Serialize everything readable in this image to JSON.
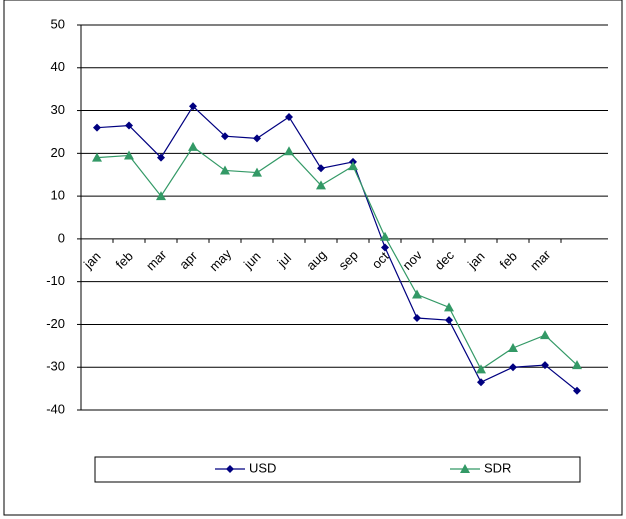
{
  "chart_data": {
    "type": "line",
    "categories": [
      "jan",
      "feb",
      "mar",
      "apr",
      "may",
      "jun",
      "jul",
      "aug",
      "sep",
      "oct",
      "nov",
      "dec",
      "jan",
      "feb",
      "mar",
      null
    ],
    "series": [
      {
        "name": "USD",
        "color": "#000080",
        "marker": "diamond",
        "values": [
          26,
          26.5,
          19,
          31,
          24,
          23.5,
          28.5,
          16.5,
          18,
          -2,
          -18.5,
          -19,
          -33.5,
          -30,
          -29.5,
          -35.5
        ]
      },
      {
        "name": "SDR",
        "color": "#339966",
        "marker": "triangle",
        "values": [
          19,
          19.5,
          10,
          21.5,
          16,
          15.5,
          20.5,
          12.5,
          17,
          0.5,
          -13,
          -16,
          -30.5,
          -25.5,
          -22.5,
          -29.5
        ]
      }
    ],
    "ylim": [
      -40,
      50
    ],
    "yticks": [
      -40,
      -30,
      -20,
      -10,
      0,
      10,
      20,
      30,
      40,
      50
    ],
    "grid": true
  }
}
